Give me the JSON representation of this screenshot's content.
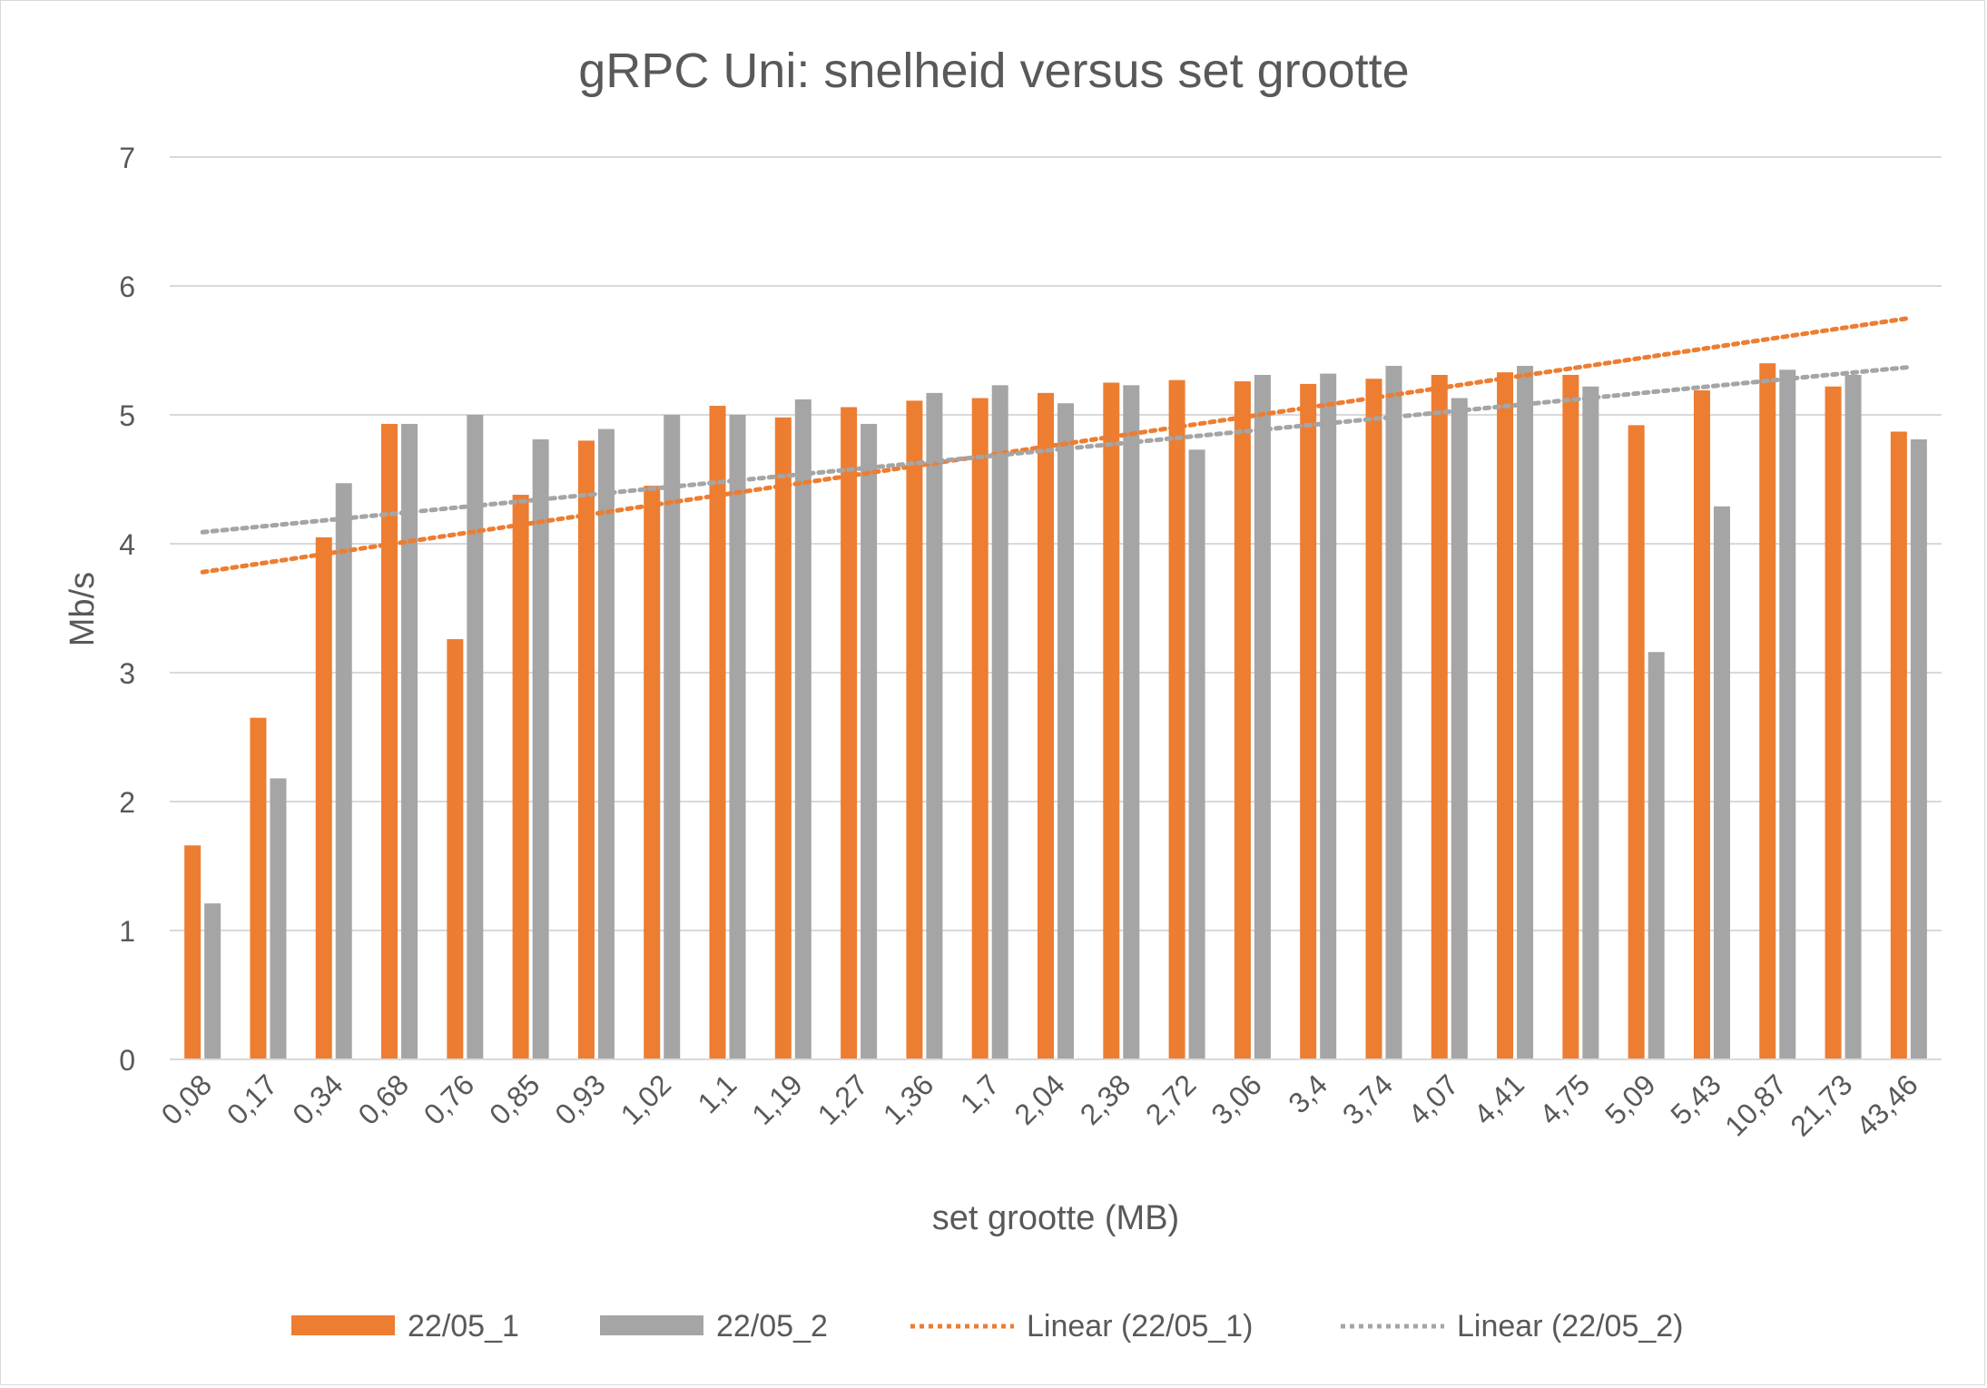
{
  "chart_data": {
    "type": "bar",
    "title": "gRPC Uni: snelheid versus set grootte",
    "xlabel": "set grootte (MB)",
    "ylabel": "Mb/s",
    "ylim": [
      0,
      7
    ],
    "yticks": [
      "0",
      "1",
      "2",
      "3",
      "4",
      "5",
      "6",
      "7"
    ],
    "grid": true,
    "legend_position": "bottom",
    "categories": [
      "0,08",
      "0,17",
      "0,34",
      "0,68",
      "0,76",
      "0,85",
      "0,93",
      "1,02",
      "1,1",
      "1,19",
      "1,27",
      "1,36",
      "1,7",
      "2,04",
      "2,38",
      "2,72",
      "3,06",
      "3,4",
      "3,74",
      "4,07",
      "4,41",
      "4,75",
      "5,09",
      "5,43",
      "10,87",
      "21,73",
      "43,46"
    ],
    "series": [
      {
        "name": "22/05_1",
        "color": "#ED7D31",
        "values": [
          1.66,
          2.65,
          4.05,
          4.93,
          3.26,
          4.38,
          4.8,
          4.45,
          5.07,
          4.98,
          5.06,
          5.11,
          5.13,
          5.17,
          5.25,
          5.27,
          5.26,
          5.24,
          5.28,
          5.31,
          5.33,
          5.31,
          4.92,
          5.19,
          5.4,
          5.22,
          4.87
        ]
      },
      {
        "name": "22/05_2",
        "color": "#A5A5A5",
        "values": [
          1.21,
          2.18,
          4.47,
          4.93,
          5.0,
          4.81,
          4.89,
          5.0,
          5.0,
          5.12,
          4.93,
          5.17,
          5.23,
          5.09,
          5.23,
          4.73,
          5.31,
          5.32,
          5.38,
          5.13,
          5.38,
          5.22,
          3.16,
          4.29,
          5.35,
          5.31,
          4.81
        ]
      }
    ],
    "trendlines": [
      {
        "name": "Linear (22/05_1)",
        "type": "linear",
        "color": "#ED7D31",
        "start": 3.78,
        "end": 5.75
      },
      {
        "name": "Linear (22/05_2)",
        "type": "linear",
        "color": "#A5A5A5",
        "start": 4.09,
        "end": 5.37
      }
    ]
  }
}
